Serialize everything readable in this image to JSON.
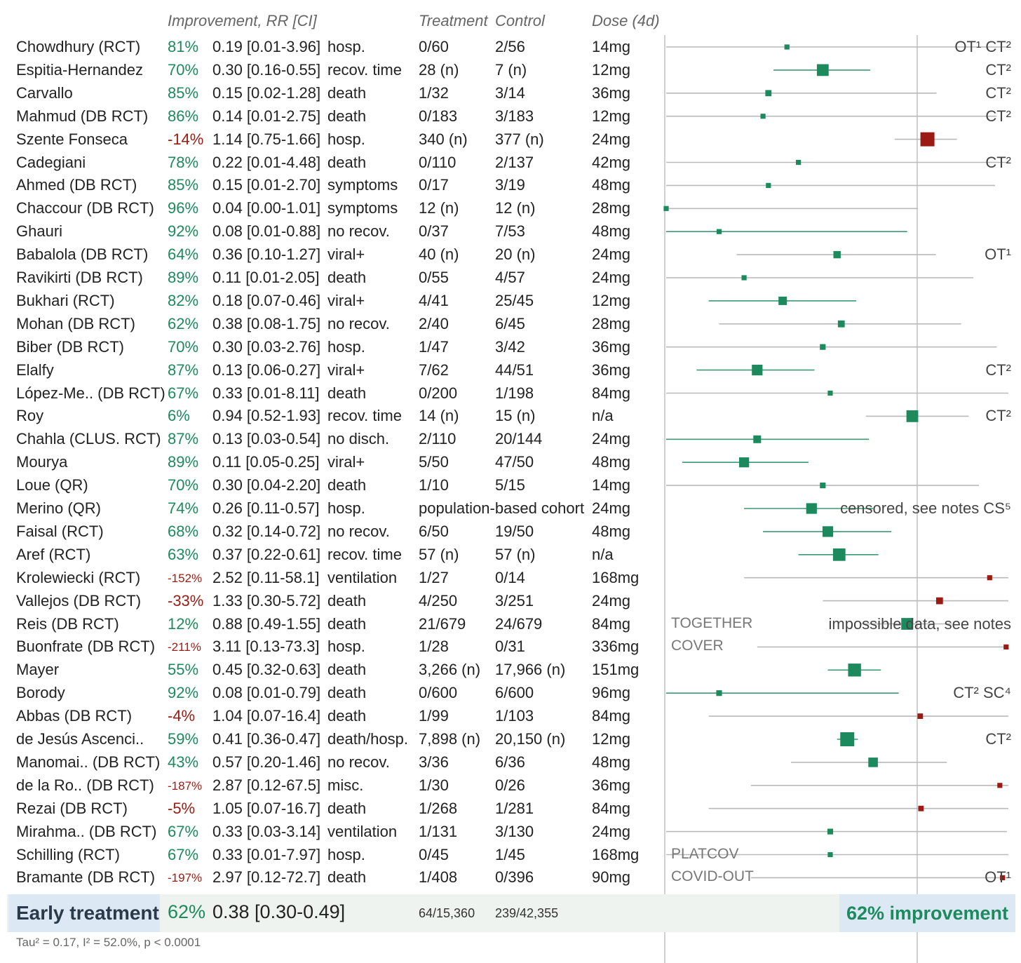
{
  "header": {
    "improvement": "Improvement, RR [CI]",
    "treatment": "Treatment",
    "control": "Control",
    "dose": "Dose (4d)"
  },
  "colors": {
    "positive": "#1d8a5e",
    "negative": "#9b1b12",
    "line_pos": "#3c9a73",
    "line_gray": "#b9b9b9"
  },
  "rows": [
    {
      "name": "Chowdhury (RCT)",
      "imp": "81%",
      "rr": "0.19 [0.01-3.96]",
      "outcome": "hosp.",
      "trt": "0/60",
      "ctl": "2/56",
      "dose": "14mg",
      "note": "OT¹ CT²"
    },
    {
      "name": "Espitia-Hernandez",
      "imp": "70%",
      "rr": "0.30 [0.16-0.55]",
      "outcome": "recov. time",
      "trt": "28 (n)",
      "ctl": "7 (n)",
      "dose": "12mg",
      "note": "CT²"
    },
    {
      "name": "Carvallo",
      "imp": "85%",
      "rr": "0.15 [0.02-1.28]",
      "outcome": "death",
      "trt": "1/32",
      "ctl": "3/14",
      "dose": "36mg",
      "note": "CT²"
    },
    {
      "name": "Mahmud (DB RCT)",
      "imp": "86%",
      "rr": "0.14 [0.01-2.75]",
      "outcome": "death",
      "trt": "0/183",
      "ctl": "3/183",
      "dose": "12mg",
      "note": "CT²"
    },
    {
      "name": "Szente Fonseca",
      "imp": "-14%",
      "rr": "1.14 [0.75-1.66]",
      "outcome": "hosp.",
      "trt": "340 (n)",
      "ctl": "377 (n)",
      "dose": "24mg",
      "note": ""
    },
    {
      "name": "Cadegiani",
      "imp": "78%",
      "rr": "0.22 [0.01-4.48]",
      "outcome": "death",
      "trt": "0/110",
      "ctl": "2/137",
      "dose": "42mg",
      "note": "CT²"
    },
    {
      "name": "Ahmed (DB RCT)",
      "imp": "85%",
      "rr": "0.15 [0.01-2.70]",
      "outcome": "symptoms",
      "trt": "0/17",
      "ctl": "3/19",
      "dose": "48mg",
      "note": ""
    },
    {
      "name": "Chaccour (DB RCT)",
      "imp": "96%",
      "rr": "0.04 [0.00-1.01]",
      "outcome": "symptoms",
      "trt": "12 (n)",
      "ctl": "12 (n)",
      "dose": "28mg",
      "note": ""
    },
    {
      "name": "Ghauri",
      "imp": "92%",
      "rr": "0.08 [0.01-0.88]",
      "outcome": "no recov.",
      "trt": "0/37",
      "ctl": "7/53",
      "dose": "48mg",
      "note": ""
    },
    {
      "name": "Babalola (DB RCT)",
      "imp": "64%",
      "rr": "0.36 [0.10-1.27]",
      "outcome": "viral+",
      "trt": "40 (n)",
      "ctl": "20 (n)",
      "dose": "24mg",
      "note": "OT¹"
    },
    {
      "name": "Ravikirti (DB RCT)",
      "imp": "89%",
      "rr": "0.11 [0.01-2.05]",
      "outcome": "death",
      "trt": "0/55",
      "ctl": "4/57",
      "dose": "24mg",
      "note": ""
    },
    {
      "name": "Bukhari (RCT)",
      "imp": "82%",
      "rr": "0.18 [0.07-0.46]",
      "outcome": "viral+",
      "trt": "4/41",
      "ctl": "25/45",
      "dose": "12mg",
      "note": ""
    },
    {
      "name": "Mohan (DB RCT)",
      "imp": "62%",
      "rr": "0.38 [0.08-1.75]",
      "outcome": "no recov.",
      "trt": "2/40",
      "ctl": "6/45",
      "dose": "28mg",
      "note": ""
    },
    {
      "name": "Biber (DB RCT)",
      "imp": "70%",
      "rr": "0.30 [0.03-2.76]",
      "outcome": "hosp.",
      "trt": "1/47",
      "ctl": "3/42",
      "dose": "36mg",
      "note": ""
    },
    {
      "name": "Elalfy",
      "imp": "87%",
      "rr": "0.13 [0.06-0.27]",
      "outcome": "viral+",
      "trt": "7/62",
      "ctl": "44/51",
      "dose": "36mg",
      "note": "CT²"
    },
    {
      "name": "López-Me.. (DB RCT)",
      "imp": "67%",
      "rr": "0.33 [0.01-8.11]",
      "outcome": "death",
      "trt": "0/200",
      "ctl": "1/198",
      "dose": "84mg",
      "note": ""
    },
    {
      "name": "Roy",
      "imp": "6%",
      "rr": "0.94 [0.52-1.93]",
      "outcome": "recov. time",
      "trt": "14 (n)",
      "ctl": "15 (n)",
      "dose": "n/a",
      "note": "CT²"
    },
    {
      "name": "Chahla (CLUS. RCT)",
      "imp": "87%",
      "rr": "0.13 [0.03-0.54]",
      "outcome": "no disch.",
      "trt": "2/110",
      "ctl": "20/144",
      "dose": "24mg",
      "note": ""
    },
    {
      "name": "Mourya",
      "imp": "89%",
      "rr": "0.11 [0.05-0.25]",
      "outcome": "viral+",
      "trt": "5/50",
      "ctl": "47/50",
      "dose": "48mg",
      "note": ""
    },
    {
      "name": "Loue (QR)",
      "imp": "70%",
      "rr": "0.30 [0.04-2.20]",
      "outcome": "death",
      "trt": "1/10",
      "ctl": "5/15",
      "dose": "14mg",
      "note": ""
    },
    {
      "name": "Merino (QR)",
      "imp": "74%",
      "rr": "0.26 [0.11-0.57]",
      "outcome": "hosp.",
      "trt": "population-based cohort",
      "ctl": "",
      "dose": "24mg",
      "note": "censored, see notes CS⁵"
    },
    {
      "name": "Faisal (RCT)",
      "imp": "68%",
      "rr": "0.32 [0.14-0.72]",
      "outcome": "no recov.",
      "trt": "6/50",
      "ctl": "19/50",
      "dose": "48mg",
      "note": ""
    },
    {
      "name": "Aref (RCT)",
      "imp": "63%",
      "rr": "0.37 [0.22-0.61]",
      "outcome": "recov. time",
      "trt": "57 (n)",
      "ctl": "57 (n)",
      "dose": "n/a",
      "note": ""
    },
    {
      "name": "Krolewiecki (RCT)",
      "imp": "-152%",
      "rr": "2.52 [0.11-58.1]",
      "outcome": "ventilation",
      "trt": "1/27",
      "ctl": "0/14",
      "dose": "168mg",
      "note": ""
    },
    {
      "name": "Vallejos (DB RCT)",
      "imp": "-33%",
      "rr": "1.33 [0.30-5.72]",
      "outcome": "death",
      "trt": "4/250",
      "ctl": "3/251",
      "dose": "24mg",
      "note": ""
    },
    {
      "name": "Reis (DB RCT)",
      "imp": "12%",
      "rr": "0.88 [0.49-1.55]",
      "outcome": "death",
      "trt": "21/679",
      "ctl": "24/679",
      "dose": "84mg",
      "note": "impossible data, see notes",
      "tag": "TOGETHER"
    },
    {
      "name": "Buonfrate (DB RCT)",
      "imp": "-211%",
      "rr": "3.11 [0.13-73.3]",
      "outcome": "hosp.",
      "trt": "1/28",
      "ctl": "0/31",
      "dose": "336mg",
      "note": "",
      "tag": "COVER"
    },
    {
      "name": "Mayer",
      "imp": "55%",
      "rr": "0.45 [0.32-0.63]",
      "outcome": "death",
      "trt": "3,266 (n)",
      "ctl": "17,966 (n)",
      "dose": "151mg",
      "note": ""
    },
    {
      "name": "Borody",
      "imp": "92%",
      "rr": "0.08 [0.01-0.79]",
      "outcome": "death",
      "trt": "0/600",
      "ctl": "6/600",
      "dose": "96mg",
      "note": "CT² SC⁴"
    },
    {
      "name": "Abbas (DB RCT)",
      "imp": "-4%",
      "rr": "1.04 [0.07-16.4]",
      "outcome": "death",
      "trt": "1/99",
      "ctl": "1/103",
      "dose": "84mg",
      "note": ""
    },
    {
      "name": "de Jesús Ascenci..",
      "imp": "59%",
      "rr": "0.41 [0.36-0.47]",
      "outcome": "death/hosp.",
      "trt": "7,898 (n)",
      "ctl": "20,150 (n)",
      "dose": "12mg",
      "note": "CT²"
    },
    {
      "name": "Manomai.. (DB RCT)",
      "imp": "43%",
      "rr": "0.57 [0.20-1.46]",
      "outcome": "no recov.",
      "trt": "3/36",
      "ctl": "6/36",
      "dose": "48mg",
      "note": ""
    },
    {
      "name": "de la Ro.. (DB RCT)",
      "imp": "-187%",
      "rr": "2.87 [0.12-67.5]",
      "outcome": "misc.",
      "trt": "1/30",
      "ctl": "0/26",
      "dose": "36mg",
      "note": ""
    },
    {
      "name": "Rezai (DB RCT)",
      "imp": "-5%",
      "rr": "1.05 [0.07-16.7]",
      "outcome": "death",
      "trt": "1/268",
      "ctl": "1/281",
      "dose": "84mg",
      "note": ""
    },
    {
      "name": "Mirahma.. (DB RCT)",
      "imp": "67%",
      "rr": "0.33 [0.03-3.14]",
      "outcome": "ventilation",
      "trt": "1/131",
      "ctl": "3/130",
      "dose": "24mg",
      "note": ""
    },
    {
      "name": "Schilling (RCT)",
      "imp": "67%",
      "rr": "0.33 [0.01-7.97]",
      "outcome": "hosp.",
      "trt": "0/45",
      "ctl": "1/45",
      "dose": "168mg",
      "note": "",
      "tag": "PLATCOV"
    },
    {
      "name": "Bramante (DB RCT)",
      "imp": "-197%",
      "rr": "2.97 [0.12-72.7]",
      "outcome": "death",
      "trt": "1/408",
      "ctl": "0/396",
      "dose": "90mg",
      "note": "OT¹",
      "tag": "COVID-OUT"
    }
  ],
  "summary": {
    "name": "Early treatment",
    "imp": "62%",
    "rr": "0.38 [0.30-0.49]",
    "trt": "64/15,360",
    "ctl": "239/42,355",
    "badge": "62% improvement",
    "stats": "Tau² = 0.17, I² = 52.0%, p < 0.0001"
  },
  "chart_data": {
    "type": "forest",
    "title": "",
    "xlabel": "",
    "ylabel": "",
    "scale": "log",
    "reference_rr": 1.0,
    "series": [
      {
        "name": "Early treatment",
        "points": [
          {
            "label": "Chowdhury (RCT)",
            "rr": 0.19,
            "lo": 0.01,
            "hi": 3.96,
            "w": 1
          },
          {
            "label": "Espitia-Hernandez",
            "rr": 0.3,
            "lo": 0.16,
            "hi": 0.55,
            "w": 4
          },
          {
            "label": "Carvallo",
            "rr": 0.15,
            "lo": 0.02,
            "hi": 1.28,
            "w": 1.5
          },
          {
            "label": "Mahmud (DB RCT)",
            "rr": 0.14,
            "lo": 0.01,
            "hi": 2.75,
            "w": 1
          },
          {
            "label": "Szente Fonseca",
            "rr": 1.14,
            "lo": 0.75,
            "hi": 1.66,
            "w": 5
          },
          {
            "label": "Cadegiani",
            "rr": 0.22,
            "lo": 0.01,
            "hi": 4.48,
            "w": 1
          },
          {
            "label": "Ahmed (DB RCT)",
            "rr": 0.15,
            "lo": 0.01,
            "hi": 2.7,
            "w": 1
          },
          {
            "label": "Chaccour (DB RCT)",
            "rr": 0.04,
            "lo": 0.0,
            "hi": 1.01,
            "w": 1
          },
          {
            "label": "Ghauri",
            "rr": 0.08,
            "lo": 0.01,
            "hi": 0.88,
            "w": 1
          },
          {
            "label": "Babalola (DB RCT)",
            "rr": 0.36,
            "lo": 0.1,
            "hi": 1.27,
            "w": 2
          },
          {
            "label": "Ravikirti (DB RCT)",
            "rr": 0.11,
            "lo": 0.01,
            "hi": 2.05,
            "w": 1
          },
          {
            "label": "Bukhari (RCT)",
            "rr": 0.18,
            "lo": 0.07,
            "hi": 0.46,
            "w": 2.5
          },
          {
            "label": "Mohan (DB RCT)",
            "rr": 0.38,
            "lo": 0.08,
            "hi": 1.75,
            "w": 1.8
          },
          {
            "label": "Biber (DB RCT)",
            "rr": 0.3,
            "lo": 0.03,
            "hi": 2.76,
            "w": 1.3
          },
          {
            "label": "Elalfy",
            "rr": 0.13,
            "lo": 0.06,
            "hi": 0.27,
            "w": 3.5
          },
          {
            "label": "López-Me.. (DB RCT)",
            "rr": 0.33,
            "lo": 0.01,
            "hi": 8.11,
            "w": 1
          },
          {
            "label": "Roy",
            "rr": 0.94,
            "lo": 0.52,
            "hi": 1.93,
            "w": 4
          },
          {
            "label": "Chahla (CLUS. RCT)",
            "rr": 0.13,
            "lo": 0.03,
            "hi": 0.54,
            "w": 2.2
          },
          {
            "label": "Mourya",
            "rr": 0.11,
            "lo": 0.05,
            "hi": 0.25,
            "w": 3.2
          },
          {
            "label": "Loue (QR)",
            "rr": 0.3,
            "lo": 0.04,
            "hi": 2.2,
            "w": 1.3
          },
          {
            "label": "Merino (QR)",
            "rr": 0.26,
            "lo": 0.11,
            "hi": 0.57,
            "w": 3.5
          },
          {
            "label": "Faisal (RCT)",
            "rr": 0.32,
            "lo": 0.14,
            "hi": 0.72,
            "w": 3.5
          },
          {
            "label": "Aref (RCT)",
            "rr": 0.37,
            "lo": 0.22,
            "hi": 0.61,
            "w": 4.3
          },
          {
            "label": "Krolewiecki (RCT)",
            "rr": 2.52,
            "lo": 0.11,
            "hi": 58.1,
            "w": 1
          },
          {
            "label": "Vallejos (DB RCT)",
            "rr": 1.33,
            "lo": 0.3,
            "hi": 5.72,
            "w": 1.8
          },
          {
            "label": "Reis (DB RCT)",
            "rr": 0.88,
            "lo": 0.49,
            "hi": 1.55,
            "w": 4
          },
          {
            "label": "Buonfrate (DB RCT)",
            "rr": 3.11,
            "lo": 0.13,
            "hi": 73.3,
            "w": 1
          },
          {
            "label": "Mayer",
            "rr": 0.45,
            "lo": 0.32,
            "hi": 0.63,
            "w": 4.5
          },
          {
            "label": "Borody",
            "rr": 0.08,
            "lo": 0.01,
            "hi": 0.79,
            "w": 1.3
          },
          {
            "label": "Abbas (DB RCT)",
            "rr": 1.04,
            "lo": 0.07,
            "hi": 16.4,
            "w": 1.2
          },
          {
            "label": "de Jesús Ascenci..",
            "rr": 0.41,
            "lo": 0.36,
            "hi": 0.47,
            "w": 5
          },
          {
            "label": "Manomai.. (DB RCT)",
            "rr": 0.57,
            "lo": 0.2,
            "hi": 1.46,
            "w": 3
          },
          {
            "label": "de la Ro.. (DB RCT)",
            "rr": 2.87,
            "lo": 0.12,
            "hi": 67.5,
            "w": 1
          },
          {
            "label": "Rezai (DB RCT)",
            "rr": 1.05,
            "lo": 0.07,
            "hi": 16.7,
            "w": 1.2
          },
          {
            "label": "Mirahma.. (DB RCT)",
            "rr": 0.33,
            "lo": 0.03,
            "hi": 3.14,
            "w": 1.3
          },
          {
            "label": "Schilling (RCT)",
            "rr": 0.33,
            "lo": 0.01,
            "hi": 7.97,
            "w": 1
          },
          {
            "label": "Bramante (DB RCT)",
            "rr": 2.97,
            "lo": 0.12,
            "hi": 72.7,
            "w": 1
          }
        ]
      }
    ],
    "pooled": {
      "rr": 0.38,
      "lo": 0.3,
      "hi": 0.49
    }
  }
}
